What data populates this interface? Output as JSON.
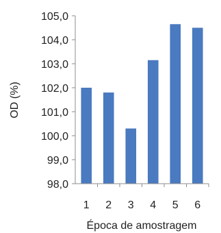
{
  "chart_data": {
    "type": "bar",
    "title": "",
    "xlabel": "Época de amostragem",
    "ylabel": "OD (%)",
    "categories": [
      "1",
      "2",
      "3",
      "4",
      "5",
      "6"
    ],
    "values": [
      102.0,
      101.8,
      100.3,
      103.15,
      104.65,
      104.5
    ],
    "ylim": [
      98.0,
      105.0
    ],
    "yticks": [
      "98,0",
      "99,0",
      "100,0",
      "101,0",
      "102,0",
      "103,0",
      "104,0",
      "105,0"
    ],
    "ytick_values": [
      98,
      99,
      100,
      101,
      102,
      103,
      104,
      105
    ],
    "grid": false,
    "bar_color": "#4a7abf",
    "axis_color": "#8c8c8c"
  }
}
